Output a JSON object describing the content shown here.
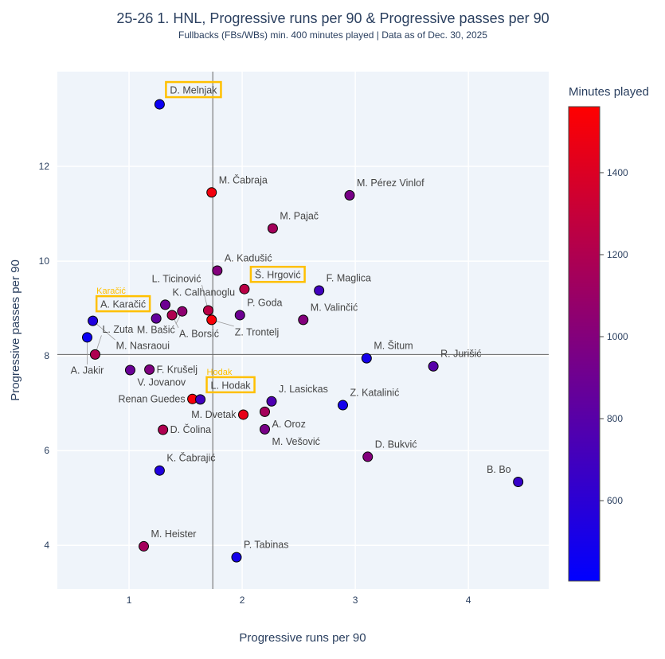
{
  "chart_data": {
    "type": "scatter",
    "title": "25-26 1. HNL, Progressive runs per 90 & Progressive passes per 90",
    "subtitle": "Fullbacks (FBs/WBs) min. 400 minutes played | Data as of Dec. 30, 2025",
    "xlabel": "Progressive runs per 90",
    "ylabel": "Progressive passes per 90",
    "xlim": [
      0.366,
      4.71
    ],
    "ylim": [
      3.08,
      14.0
    ],
    "xticks": [
      1,
      2,
      3,
      4
    ],
    "yticks": [
      4,
      6,
      8,
      10,
      12
    ],
    "grid": true,
    "reference_lines": {
      "x": 1.74,
      "y": 8.03
    },
    "colorbar": {
      "title": "Minutes played",
      "range": [
        404,
        1561
      ],
      "ticks": [
        600,
        800,
        1000,
        1200,
        1400
      ],
      "low_color": "#0000ff",
      "high_color": "#ff0000"
    },
    "highlight_color": "#ffc000",
    "points": [
      {
        "name": "D. Melnjak",
        "x": 1.27,
        "y": 13.31,
        "minutes": 460,
        "highlight": true
      },
      {
        "name": "M. Čabraja",
        "x": 1.73,
        "y": 11.45,
        "minutes": 1500
      },
      {
        "name": "M. Pérez Vinlof",
        "x": 2.95,
        "y": 11.39,
        "minutes": 950
      },
      {
        "name": "M. Pajač",
        "x": 2.27,
        "y": 10.69,
        "minutes": 1150
      },
      {
        "name": "A. Kadušić",
        "x": 1.78,
        "y": 9.8,
        "minutes": 1000
      },
      {
        "name": "Š. Hrgović",
        "x": 2.02,
        "y": 9.41,
        "minutes": 1250,
        "highlight": true
      },
      {
        "name": "F. Maglica",
        "x": 2.68,
        "y": 9.38,
        "minutes": 700
      },
      {
        "name": "K. Calhanoglu",
        "x": 1.32,
        "y": 9.08,
        "minutes": 900
      },
      {
        "name": "A. Karačić",
        "x": 1.24,
        "y": 8.79,
        "minutes": 850,
        "highlight": true,
        "tag": "Karačić"
      },
      {
        "name": "A. Borsić",
        "x": 1.38,
        "y": 8.86,
        "minutes": 1200
      },
      {
        "name": "M. Bašić",
        "x": 1.47,
        "y": 8.94,
        "minutes": 1050
      },
      {
        "name": "L. Ticinović",
        "x": 1.7,
        "y": 8.96,
        "minutes": 1250
      },
      {
        "name": "P. Goda",
        "x": 1.98,
        "y": 8.86,
        "minutes": 900
      },
      {
        "name": "Z. Trontelj",
        "x": 1.73,
        "y": 8.76,
        "minutes": 1530
      },
      {
        "name": "M. Valinčić",
        "x": 2.54,
        "y": 8.76,
        "minutes": 1000
      },
      {
        "name": "M. Nasraoui",
        "x": 0.68,
        "y": 8.74,
        "minutes": 550
      },
      {
        "name": "A. Jakir",
        "x": 0.63,
        "y": 8.39,
        "minutes": 450
      },
      {
        "name": "L. Zuta",
        "x": 0.7,
        "y": 8.03,
        "minutes": 1200
      },
      {
        "name": "M. Šitum",
        "x": 3.1,
        "y": 7.95,
        "minutes": 500
      },
      {
        "name": "R. Jurišić",
        "x": 3.69,
        "y": 7.78,
        "minutes": 800
      },
      {
        "name": "V. Jovanov",
        "x": 1.01,
        "y": 7.7,
        "minutes": 880
      },
      {
        "name": "F. Krušelj",
        "x": 1.18,
        "y": 7.71,
        "minutes": 980
      },
      {
        "name": "Renan Guedes",
        "x": 1.56,
        "y": 7.09,
        "minutes": 1520
      },
      {
        "name": "L. Hodak",
        "x": 1.63,
        "y": 7.08,
        "minutes": 700,
        "highlight": true,
        "tag": "Hodak"
      },
      {
        "name": "J. Lasickas",
        "x": 2.26,
        "y": 7.04,
        "minutes": 760
      },
      {
        "name": "A. Oroz",
        "x": 2.2,
        "y": 6.82,
        "minutes": 1150
      },
      {
        "name": "M. Dvetak",
        "x": 2.01,
        "y": 6.76,
        "minutes": 1450
      },
      {
        "name": "M. Vešović",
        "x": 2.2,
        "y": 6.45,
        "minutes": 950
      },
      {
        "name": "Z. Katalinić",
        "x": 2.89,
        "y": 6.96,
        "minutes": 500
      },
      {
        "name": "D. Čolina",
        "x": 1.3,
        "y": 6.44,
        "minutes": 1200
      },
      {
        "name": "D. Bukvić",
        "x": 3.11,
        "y": 5.87,
        "minutes": 1000
      },
      {
        "name": "K. Čabrajić",
        "x": 1.27,
        "y": 5.58,
        "minutes": 550
      },
      {
        "name": "B. Bo",
        "x": 4.44,
        "y": 5.34,
        "minutes": 650
      },
      {
        "name": "M. Heister",
        "x": 1.13,
        "y": 3.98,
        "minutes": 1150
      },
      {
        "name": "P. Tabinas",
        "x": 1.95,
        "y": 3.75,
        "minutes": 500
      }
    ]
  }
}
